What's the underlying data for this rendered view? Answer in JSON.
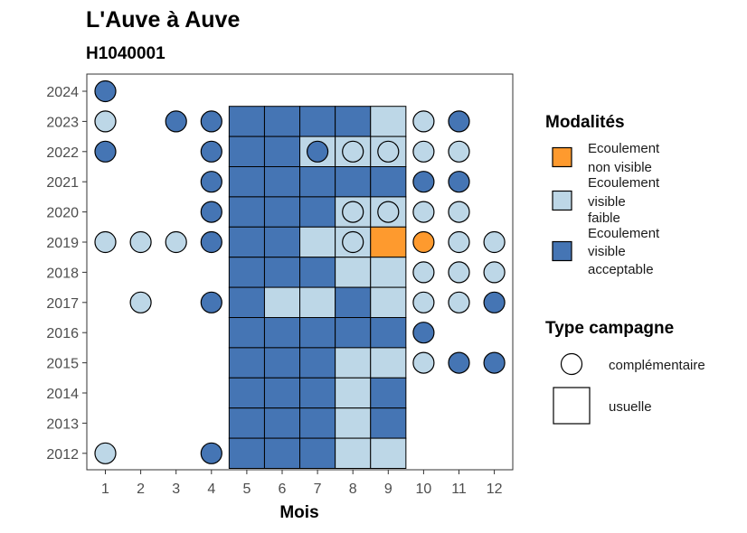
{
  "chart_data": {
    "type": "heatmap",
    "title": "L'Auve à Auve",
    "subtitle": "H1040001",
    "xlabel": "Mois",
    "ylabel": "",
    "x_ticks": [
      "1",
      "2",
      "3",
      "4",
      "5",
      "6",
      "7",
      "8",
      "9",
      "10",
      "11",
      "12"
    ],
    "y_ticks": [
      "2024",
      "2023",
      "2022",
      "2021",
      "2020",
      "2019",
      "2018",
      "2017",
      "2016",
      "2015",
      "2014",
      "2013",
      "2012"
    ],
    "grid": false,
    "legend_position": "right",
    "modalites": {
      "title": "Modalités",
      "items": [
        {
          "key": "nv",
          "lines": [
            "Ecoulement",
            "non visible"
          ],
          "color": "#fe9a2e"
        },
        {
          "key": "vf",
          "lines": [
            "Ecoulement",
            "visible",
            "faible"
          ],
          "color": "#bdd7e7"
        },
        {
          "key": "va",
          "lines": [
            "Ecoulement",
            "visible",
            "acceptable"
          ],
          "color": "#4575b4"
        }
      ]
    },
    "type_campagne": {
      "title": "Type campagne",
      "items": [
        {
          "key": "complementaire",
          "label": "complémentaire",
          "shape": "circle"
        },
        {
          "key": "usuelle",
          "label": "usuelle",
          "shape": "square"
        }
      ]
    },
    "observations": [
      {
        "year": "2024",
        "month": 1,
        "modalite": "va",
        "campagne": "complementaire"
      },
      {
        "year": "2023",
        "month": 1,
        "modalite": "vf",
        "campagne": "complementaire"
      },
      {
        "year": "2023",
        "month": 3,
        "modalite": "va",
        "campagne": "complementaire"
      },
      {
        "year": "2023",
        "month": 4,
        "modalite": "va",
        "campagne": "complementaire"
      },
      {
        "year": "2023",
        "month": 5,
        "modalite": "va",
        "campagne": "usuelle"
      },
      {
        "year": "2023",
        "month": 6,
        "modalite": "va",
        "campagne": "usuelle"
      },
      {
        "year": "2023",
        "month": 7,
        "modalite": "va",
        "campagne": "usuelle"
      },
      {
        "year": "2023",
        "month": 8,
        "modalite": "va",
        "campagne": "usuelle"
      },
      {
        "year": "2023",
        "month": 9,
        "modalite": "vf",
        "campagne": "usuelle"
      },
      {
        "year": "2023",
        "month": 10,
        "modalite": "vf",
        "campagne": "complementaire"
      },
      {
        "year": "2023",
        "month": 11,
        "modalite": "va",
        "campagne": "complementaire"
      },
      {
        "year": "2022",
        "month": 1,
        "modalite": "va",
        "campagne": "complementaire"
      },
      {
        "year": "2022",
        "month": 4,
        "modalite": "va",
        "campagne": "complementaire"
      },
      {
        "year": "2022",
        "month": 5,
        "modalite": "va",
        "campagne": "usuelle"
      },
      {
        "year": "2022",
        "month": 6,
        "modalite": "va",
        "campagne": "usuelle"
      },
      {
        "year": "2022",
        "month": 7,
        "modalite": "vf",
        "campagne": "usuelle"
      },
      {
        "year": "2022",
        "month": 7,
        "modalite": "va",
        "campagne": "complementaire"
      },
      {
        "year": "2022",
        "month": 8,
        "modalite": "vf",
        "campagne": "usuelle"
      },
      {
        "year": "2022",
        "month": 8,
        "modalite": "vf",
        "campagne": "complementaire"
      },
      {
        "year": "2022",
        "month": 9,
        "modalite": "vf",
        "campagne": "usuelle"
      },
      {
        "year": "2022",
        "month": 9,
        "modalite": "vf",
        "campagne": "complementaire"
      },
      {
        "year": "2022",
        "month": 10,
        "modalite": "vf",
        "campagne": "complementaire"
      },
      {
        "year": "2022",
        "month": 11,
        "modalite": "vf",
        "campagne": "complementaire"
      },
      {
        "year": "2021",
        "month": 4,
        "modalite": "va",
        "campagne": "complementaire"
      },
      {
        "year": "2021",
        "month": 5,
        "modalite": "va",
        "campagne": "usuelle"
      },
      {
        "year": "2021",
        "month": 6,
        "modalite": "va",
        "campagne": "usuelle"
      },
      {
        "year": "2021",
        "month": 7,
        "modalite": "va",
        "campagne": "usuelle"
      },
      {
        "year": "2021",
        "month": 8,
        "modalite": "va",
        "campagne": "usuelle"
      },
      {
        "year": "2021",
        "month": 9,
        "modalite": "va",
        "campagne": "usuelle"
      },
      {
        "year": "2021",
        "month": 10,
        "modalite": "va",
        "campagne": "complementaire"
      },
      {
        "year": "2021",
        "month": 11,
        "modalite": "va",
        "campagne": "complementaire"
      },
      {
        "year": "2020",
        "month": 4,
        "modalite": "va",
        "campagne": "complementaire"
      },
      {
        "year": "2020",
        "month": 5,
        "modalite": "va",
        "campagne": "usuelle"
      },
      {
        "year": "2020",
        "month": 6,
        "modalite": "va",
        "campagne": "usuelle"
      },
      {
        "year": "2020",
        "month": 7,
        "modalite": "va",
        "campagne": "usuelle"
      },
      {
        "year": "2020",
        "month": 8,
        "modalite": "vf",
        "campagne": "usuelle"
      },
      {
        "year": "2020",
        "month": 8,
        "modalite": "vf",
        "campagne": "complementaire"
      },
      {
        "year": "2020",
        "month": 9,
        "modalite": "vf",
        "campagne": "usuelle"
      },
      {
        "year": "2020",
        "month": 9,
        "modalite": "vf",
        "campagne": "complementaire"
      },
      {
        "year": "2020",
        "month": 10,
        "modalite": "vf",
        "campagne": "complementaire"
      },
      {
        "year": "2020",
        "month": 11,
        "modalite": "vf",
        "campagne": "complementaire"
      },
      {
        "year": "2019",
        "month": 1,
        "modalite": "vf",
        "campagne": "complementaire"
      },
      {
        "year": "2019",
        "month": 2,
        "modalite": "vf",
        "campagne": "complementaire"
      },
      {
        "year": "2019",
        "month": 3,
        "modalite": "vf",
        "campagne": "complementaire"
      },
      {
        "year": "2019",
        "month": 4,
        "modalite": "va",
        "campagne": "complementaire"
      },
      {
        "year": "2019",
        "month": 5,
        "modalite": "va",
        "campagne": "usuelle"
      },
      {
        "year": "2019",
        "month": 6,
        "modalite": "va",
        "campagne": "usuelle"
      },
      {
        "year": "2019",
        "month": 7,
        "modalite": "vf",
        "campagne": "usuelle"
      },
      {
        "year": "2019",
        "month": 8,
        "modalite": "vf",
        "campagne": "usuelle"
      },
      {
        "year": "2019",
        "month": 8,
        "modalite": "vf",
        "campagne": "complementaire"
      },
      {
        "year": "2019",
        "month": 9,
        "modalite": "nv",
        "campagne": "usuelle"
      },
      {
        "year": "2019",
        "month": 10,
        "modalite": "nv",
        "campagne": "complementaire"
      },
      {
        "year": "2019",
        "month": 11,
        "modalite": "vf",
        "campagne": "complementaire"
      },
      {
        "year": "2019",
        "month": 12,
        "modalite": "vf",
        "campagne": "complementaire"
      },
      {
        "year": "2018",
        "month": 5,
        "modalite": "va",
        "campagne": "usuelle"
      },
      {
        "year": "2018",
        "month": 6,
        "modalite": "va",
        "campagne": "usuelle"
      },
      {
        "year": "2018",
        "month": 7,
        "modalite": "va",
        "campagne": "usuelle"
      },
      {
        "year": "2018",
        "month": 8,
        "modalite": "vf",
        "campagne": "usuelle"
      },
      {
        "year": "2018",
        "month": 9,
        "modalite": "vf",
        "campagne": "usuelle"
      },
      {
        "year": "2018",
        "month": 10,
        "modalite": "vf",
        "campagne": "complementaire"
      },
      {
        "year": "2018",
        "month": 11,
        "modalite": "vf",
        "campagne": "complementaire"
      },
      {
        "year": "2018",
        "month": 12,
        "modalite": "vf",
        "campagne": "complementaire"
      },
      {
        "year": "2017",
        "month": 2,
        "modalite": "vf",
        "campagne": "complementaire"
      },
      {
        "year": "2017",
        "month": 4,
        "modalite": "va",
        "campagne": "complementaire"
      },
      {
        "year": "2017",
        "month": 5,
        "modalite": "va",
        "campagne": "usuelle"
      },
      {
        "year": "2017",
        "month": 6,
        "modalite": "vf",
        "campagne": "usuelle"
      },
      {
        "year": "2017",
        "month": 7,
        "modalite": "vf",
        "campagne": "usuelle"
      },
      {
        "year": "2017",
        "month": 8,
        "modalite": "va",
        "campagne": "usuelle"
      },
      {
        "year": "2017",
        "month": 9,
        "modalite": "vf",
        "campagne": "usuelle"
      },
      {
        "year": "2017",
        "month": 10,
        "modalite": "vf",
        "campagne": "complementaire"
      },
      {
        "year": "2017",
        "month": 11,
        "modalite": "vf",
        "campagne": "complementaire"
      },
      {
        "year": "2017",
        "month": 12,
        "modalite": "va",
        "campagne": "complementaire"
      },
      {
        "year": "2016",
        "month": 5,
        "modalite": "va",
        "campagne": "usuelle"
      },
      {
        "year": "2016",
        "month": 6,
        "modalite": "va",
        "campagne": "usuelle"
      },
      {
        "year": "2016",
        "month": 7,
        "modalite": "va",
        "campagne": "usuelle"
      },
      {
        "year": "2016",
        "month": 8,
        "modalite": "va",
        "campagne": "usuelle"
      },
      {
        "year": "2016",
        "month": 9,
        "modalite": "va",
        "campagne": "usuelle"
      },
      {
        "year": "2016",
        "month": 10,
        "modalite": "va",
        "campagne": "complementaire"
      },
      {
        "year": "2015",
        "month": 5,
        "modalite": "va",
        "campagne": "usuelle"
      },
      {
        "year": "2015",
        "month": 6,
        "modalite": "va",
        "campagne": "usuelle"
      },
      {
        "year": "2015",
        "month": 7,
        "modalite": "va",
        "campagne": "usuelle"
      },
      {
        "year": "2015",
        "month": 8,
        "modalite": "vf",
        "campagne": "usuelle"
      },
      {
        "year": "2015",
        "month": 9,
        "modalite": "vf",
        "campagne": "usuelle"
      },
      {
        "year": "2015",
        "month": 10,
        "modalite": "vf",
        "campagne": "complementaire"
      },
      {
        "year": "2015",
        "month": 11,
        "modalite": "va",
        "campagne": "complementaire"
      },
      {
        "year": "2015",
        "month": 12,
        "modalite": "va",
        "campagne": "complementaire"
      },
      {
        "year": "2014",
        "month": 5,
        "modalite": "va",
        "campagne": "usuelle"
      },
      {
        "year": "2014",
        "month": 6,
        "modalite": "va",
        "campagne": "usuelle"
      },
      {
        "year": "2014",
        "month": 7,
        "modalite": "va",
        "campagne": "usuelle"
      },
      {
        "year": "2014",
        "month": 8,
        "modalite": "vf",
        "campagne": "usuelle"
      },
      {
        "year": "2014",
        "month": 9,
        "modalite": "va",
        "campagne": "usuelle"
      },
      {
        "year": "2013",
        "month": 5,
        "modalite": "va",
        "campagne": "usuelle"
      },
      {
        "year": "2013",
        "month": 6,
        "modalite": "va",
        "campagne": "usuelle"
      },
      {
        "year": "2013",
        "month": 7,
        "modalite": "va",
        "campagne": "usuelle"
      },
      {
        "year": "2013",
        "month": 8,
        "modalite": "vf",
        "campagne": "usuelle"
      },
      {
        "year": "2013",
        "month": 9,
        "modalite": "va",
        "campagne": "usuelle"
      },
      {
        "year": "2012",
        "month": 1,
        "modalite": "vf",
        "campagne": "complementaire"
      },
      {
        "year": "2012",
        "month": 4,
        "modalite": "va",
        "campagne": "complementaire"
      },
      {
        "year": "2012",
        "month": 5,
        "modalite": "va",
        "campagne": "usuelle"
      },
      {
        "year": "2012",
        "month": 6,
        "modalite": "va",
        "campagne": "usuelle"
      },
      {
        "year": "2012",
        "month": 7,
        "modalite": "va",
        "campagne": "usuelle"
      },
      {
        "year": "2012",
        "month": 8,
        "modalite": "vf",
        "campagne": "usuelle"
      },
      {
        "year": "2012",
        "month": 9,
        "modalite": "vf",
        "campagne": "usuelle"
      }
    ]
  }
}
